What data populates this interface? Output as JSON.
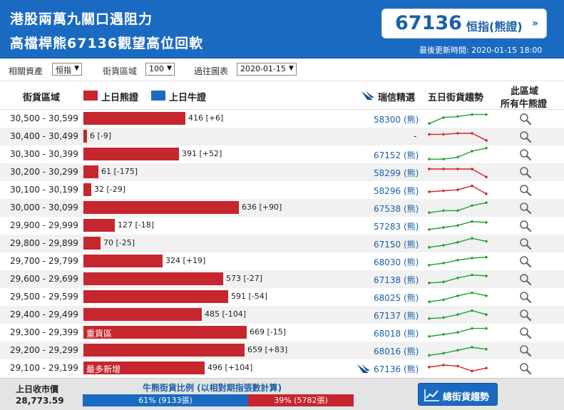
{
  "header": {
    "title_line1": "港股兩萬九關口遇阻力",
    "title_line2": "高檔桿熊67136觀望高位回軟",
    "hsi_value": "67136",
    "hsi_label": "恒指(熊證)",
    "hsi_arrow": "»",
    "updated": "最後更新時間: 2020-01-15 18:00"
  },
  "filters": {
    "asset_label": "相關資產",
    "asset_value": "恒指",
    "zone_label": "街貨區域",
    "zone_value": "100",
    "chart_label": "過往圖表",
    "chart_value": "2020-01-15"
  },
  "columns": {
    "zone": "街貨區域",
    "bear": "上日熊證",
    "bull": "上日牛證",
    "pick": "瑞信精選",
    "trend": "五日街貨趨勢",
    "all_line1": "此區域",
    "all_line2": "所有牛熊證"
  },
  "colors": {
    "bear": "#c6262e",
    "bull": "#1b6ac2",
    "up": "#22a02a",
    "down": "#d2222a",
    "link": "#1b5fa8"
  },
  "rows": [
    {
      "range": "30,500 - 30,599",
      "value": 416,
      "change": "416 [+6]",
      "code": "58300 (熊)",
      "trend": "up",
      "spark": [
        2,
        8,
        9,
        11,
        11
      ]
    },
    {
      "range": "30,400 - 30,499",
      "value": 6,
      "change": "6 [-9]",
      "code": "-",
      "trend": "down",
      "spark": [
        9,
        9,
        10,
        10,
        3
      ]
    },
    {
      "range": "30,300 - 30,399",
      "value": 391,
      "change": "391 [+52]",
      "code": "67152 (熊)",
      "trend": "up",
      "spark": [
        2,
        2,
        4,
        10,
        13
      ]
    },
    {
      "range": "30,200 - 30,299",
      "value": 61,
      "change": "61 [-175]",
      "code": "58299 (熊)",
      "trend": "down",
      "spark": [
        10,
        10,
        10,
        10,
        2
      ]
    },
    {
      "range": "30,100 - 30,199",
      "value": 32,
      "change": "32 [-29]",
      "code": "58296 (熊)",
      "trend": "down",
      "spark": [
        5,
        6,
        7,
        11,
        3
      ]
    },
    {
      "range": "30,000 - 30,099",
      "value": 636,
      "change": "636 [+90]",
      "code": "67538 (熊)",
      "trend": "up",
      "spark": [
        2,
        4,
        4,
        9,
        12
      ]
    },
    {
      "range": "29,900 - 29,999",
      "value": 127,
      "change": "127 [-18]",
      "code": "57283 (熊)",
      "trend": "up",
      "spark": [
        3,
        5,
        7,
        11,
        10
      ]
    },
    {
      "range": "29,800 - 29,899",
      "value": 70,
      "change": "70 [-25]",
      "code": "67150 (熊)",
      "trend": "up",
      "spark": [
        3,
        5,
        8,
        12,
        9
      ]
    },
    {
      "range": "29,700 - 29,799",
      "value": 324,
      "change": "324 [+19]",
      "code": "68030 (熊)",
      "trend": "up",
      "spark": [
        3,
        5,
        8,
        10,
        11
      ]
    },
    {
      "range": "29,600 - 29,699",
      "value": 573,
      "change": "573 [-27]",
      "code": "67138 (熊)",
      "trend": "up",
      "spark": [
        3,
        4,
        8,
        11,
        10
      ]
    },
    {
      "range": "29,500 - 29,599",
      "value": 591,
      "change": "591 [-54]",
      "code": "68025 (熊)",
      "trend": "up",
      "spark": [
        2,
        4,
        8,
        11,
        8
      ]
    },
    {
      "range": "29,400 - 29,499",
      "value": 485,
      "change": "485 [-104]",
      "code": "67137 (熊)",
      "trend": "up",
      "spark": [
        3,
        4,
        7,
        11,
        7
      ]
    },
    {
      "range": "29,300 - 29,399",
      "value": 669,
      "change": "669 [-15]",
      "code": "68018 (熊)",
      "trend": "up",
      "spark": [
        3,
        5,
        7,
        11,
        11
      ],
      "tag": "重貨區"
    },
    {
      "range": "29,200 - 29,299",
      "value": 659,
      "change": "659 [+83]",
      "code": "68016 (熊)",
      "trend": "up",
      "spark": [
        2,
        4,
        7,
        10,
        8
      ]
    },
    {
      "range": "29,100 - 29,199",
      "value": 496,
      "change": "496 [+104]",
      "code": "67136 (熊)",
      "trend": "down",
      "spark": [
        8,
        10,
        9,
        4,
        7
      ],
      "tag": "最多新增",
      "highlight": true
    }
  ],
  "footer": {
    "close_label": "上日收市價",
    "close_value": "28,773.59",
    "ratio_title": "牛熊街貨比例 (以相對期指張數計算)",
    "bull_text": "61% (9133張)",
    "bull_pct": 61,
    "bear_text": "39% (5782張)",
    "bear_pct": 39,
    "trend_button": "總街貨趨勢"
  }
}
